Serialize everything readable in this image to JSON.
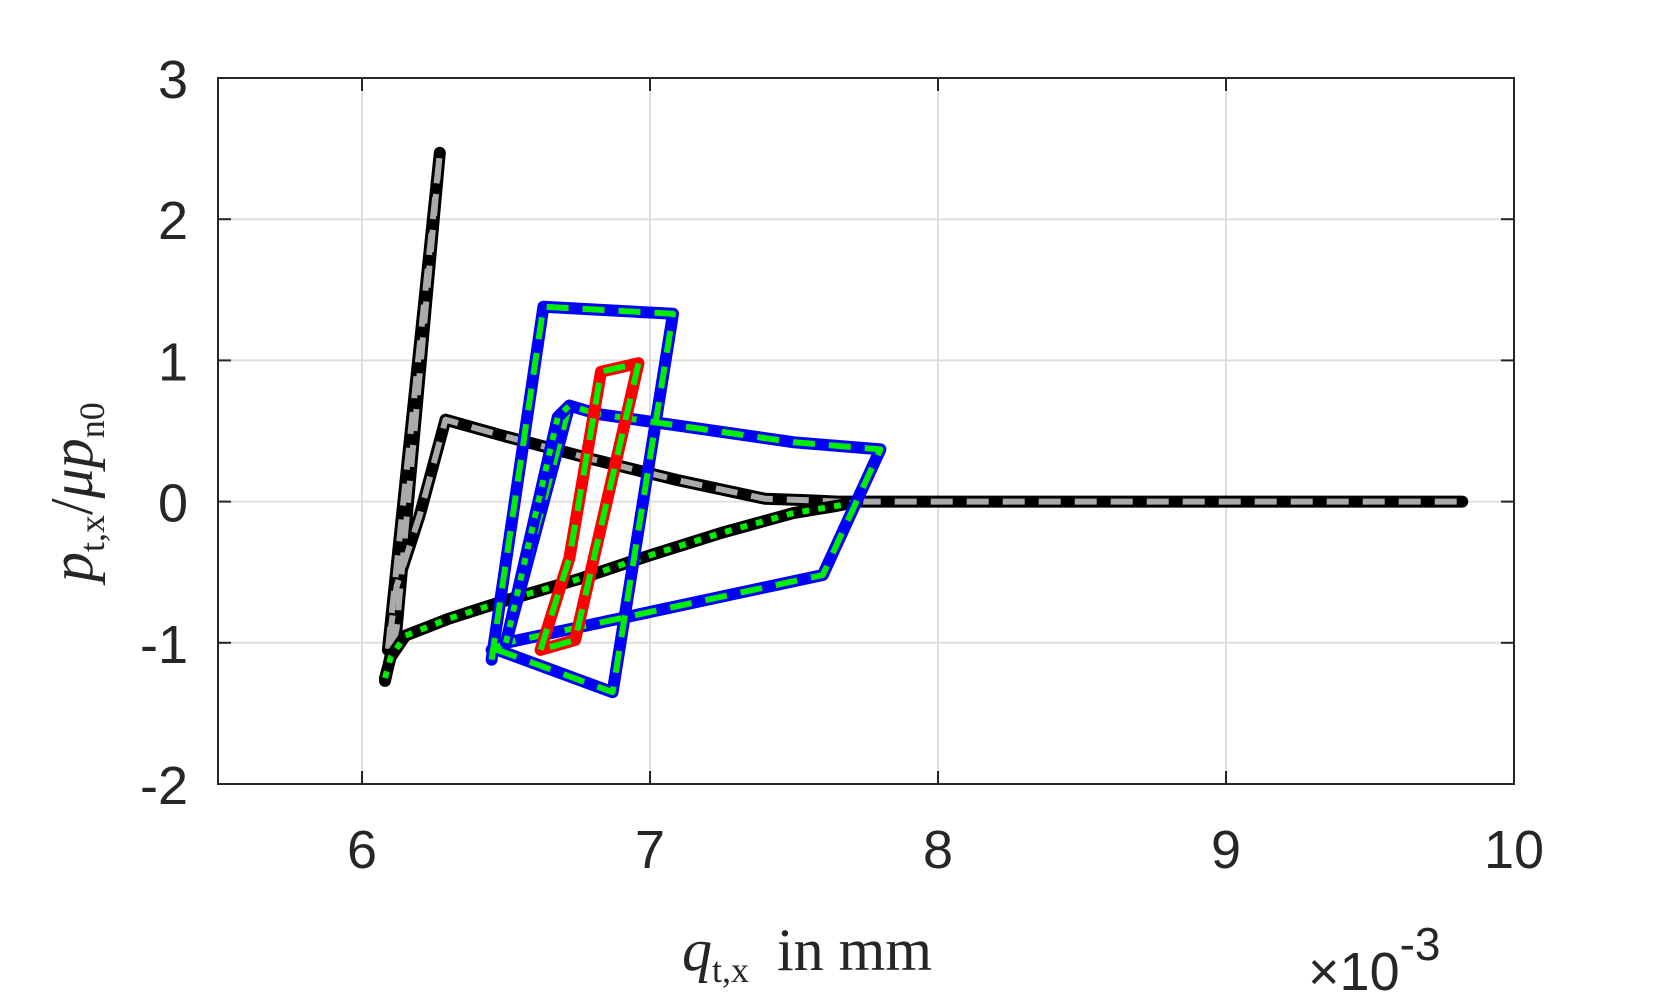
{
  "chart_data": {
    "type": "line",
    "title": "",
    "xlabel": {
      "main": "q",
      "sub": "t,x",
      "suffix": "in mm"
    },
    "ylabel": {
      "numerator_main": "p",
      "numerator_sub": "t,x",
      "denominator_mu": "μ",
      "denominator_main": "p",
      "denominator_sub": "n0"
    },
    "x_multiplier": {
      "base": "×10",
      "exponent": "-3"
    },
    "xlim": [
      5.5,
      10
    ],
    "ylim": [
      -2,
      3
    ],
    "xticks": [
      "6",
      "7",
      "8",
      "9",
      "10"
    ],
    "yticks": [
      "-2",
      "-1",
      "0",
      "1",
      "2",
      "3"
    ],
    "xtick_values": [
      6,
      7,
      8,
      9,
      10
    ],
    "ytick_values": [
      -2,
      -1,
      0,
      1,
      2,
      3
    ],
    "grid": true,
    "series": [
      {
        "color": "#000000",
        "style": "solid",
        "overlay_color": "#aaaaaa",
        "overlay_style": "dashed",
        "x": [
          6.08,
          6.12,
          6.16,
          6.27,
          6.09,
          6.12,
          6.2,
          6.29,
          6.5,
          6.8,
          7.1,
          7.4,
          7.55,
          7.65,
          7.9,
          8.5,
          9.0,
          9.5,
          9.82
        ],
        "y": [
          -1.27,
          -0.9,
          0.0,
          2.47,
          -1.05,
          -0.6,
          -0.1,
          0.58,
          0.46,
          0.3,
          0.15,
          0.02,
          0.01,
          0.0,
          0.0,
          0.0,
          0.0,
          0.0,
          0.0
        ]
      },
      {
        "color": "#000000",
        "style": "solid",
        "overlay_color": "#00ee00",
        "overlay_style": "dotted",
        "x": [
          6.08,
          6.1,
          6.15,
          6.3,
          6.5,
          6.75,
          7.0,
          7.25,
          7.5,
          7.65,
          7.72
        ],
        "y": [
          -1.25,
          -1.1,
          -0.95,
          -0.83,
          -0.7,
          -0.55,
          -0.38,
          -0.22,
          -0.08,
          -0.03,
          0.0
        ]
      },
      {
        "color": "#0000ff",
        "style": "solid",
        "overlay_color": "#00ee00",
        "overlay_style": "dashed",
        "x": [
          6.45,
          6.63,
          7.08,
          6.87,
          6.47,
          6.5,
          6.72,
          6.82,
          7.5,
          7.8,
          7.6,
          6.5,
          6.45
        ],
        "y": [
          -1.12,
          1.38,
          1.33,
          -1.35,
          -1.05,
          -1.0,
          0.68,
          0.62,
          0.42,
          0.37,
          -0.52,
          -1.0,
          -1.05
        ]
      },
      {
        "color": "#ff0000",
        "style": "solid",
        "overlay_color": "#00ee00",
        "overlay_style": "dashed",
        "x": [
          6.62,
          6.72,
          6.83,
          6.96,
          6.74,
          6.62
        ],
        "y": [
          -1.05,
          -0.4,
          0.92,
          0.98,
          -0.98,
          -1.05
        ]
      },
      {
        "color": "#0000ff",
        "style": "solid",
        "overlay_color": "#00ee00",
        "overlay_style": "dotted",
        "x": [
          6.5,
          6.68,
          6.72
        ],
        "y": [
          -1.0,
          0.6,
          0.68
        ]
      }
    ],
    "colors": {
      "axis": "#262626",
      "grid": "#dfdfdf",
      "background": "#ffffff"
    }
  }
}
